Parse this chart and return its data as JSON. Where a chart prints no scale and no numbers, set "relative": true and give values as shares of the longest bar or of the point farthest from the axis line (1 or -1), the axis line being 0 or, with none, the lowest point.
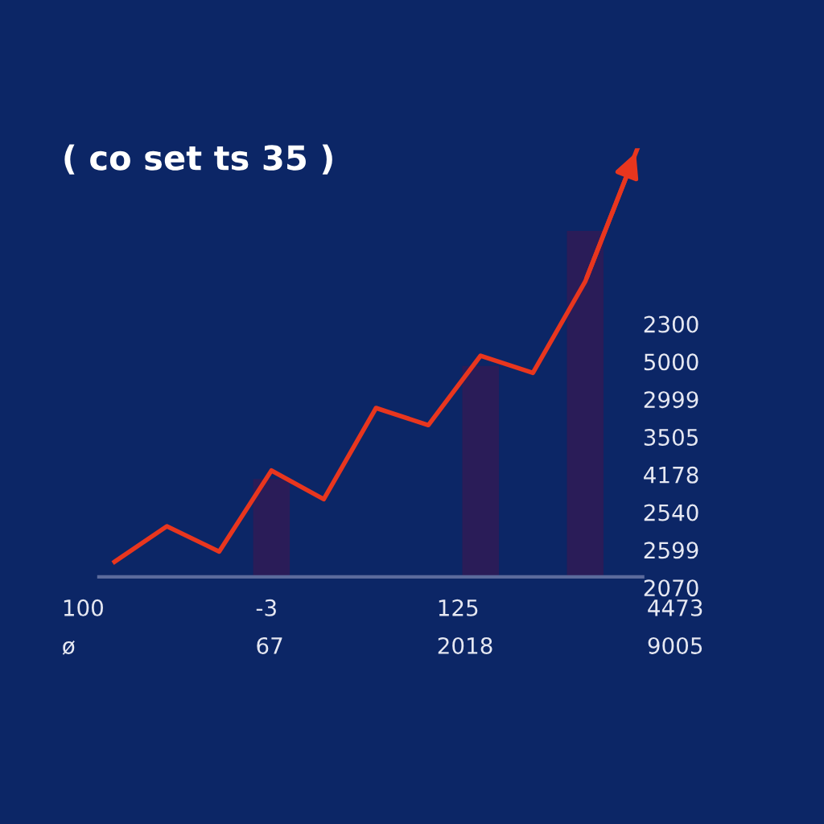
{
  "chart_data": [
    {
      "type": "line",
      "title": "( co set ts 35 )",
      "relative": true,
      "categories": [
        null,
        null,
        null,
        null,
        null,
        null,
        null,
        null,
        null,
        null,
        null
      ],
      "series": [
        {
          "color": "#e8361e",
          "values": [
            0.035,
            0.118,
            0.059,
            0.248,
            0.181,
            0.394,
            0.354,
            0.516,
            0.476,
            0.689,
            1
          ]
        }
      ],
      "annotations": [
        "2300",
        "5000",
        "2999",
        "3505",
        "4178",
        "2540",
        "2599",
        "2070",
        "100",
        "-3",
        "125",
        "4473",
        "ø",
        "67",
        "2018",
        "9005"
      ]
    },
    {
      "type": "bar",
      "relative": true,
      "categories": [
        null,
        null,
        null,
        null,
        null,
        null,
        null,
        null,
        null,
        null,
        null
      ],
      "series": [
        {
          "color": "#2a1c58",
          "values": [
            null,
            null,
            null,
            0.283,
            null,
            null,
            null,
            0.61,
            null,
            1,
            null
          ]
        }
      ]
    }
  ]
}
